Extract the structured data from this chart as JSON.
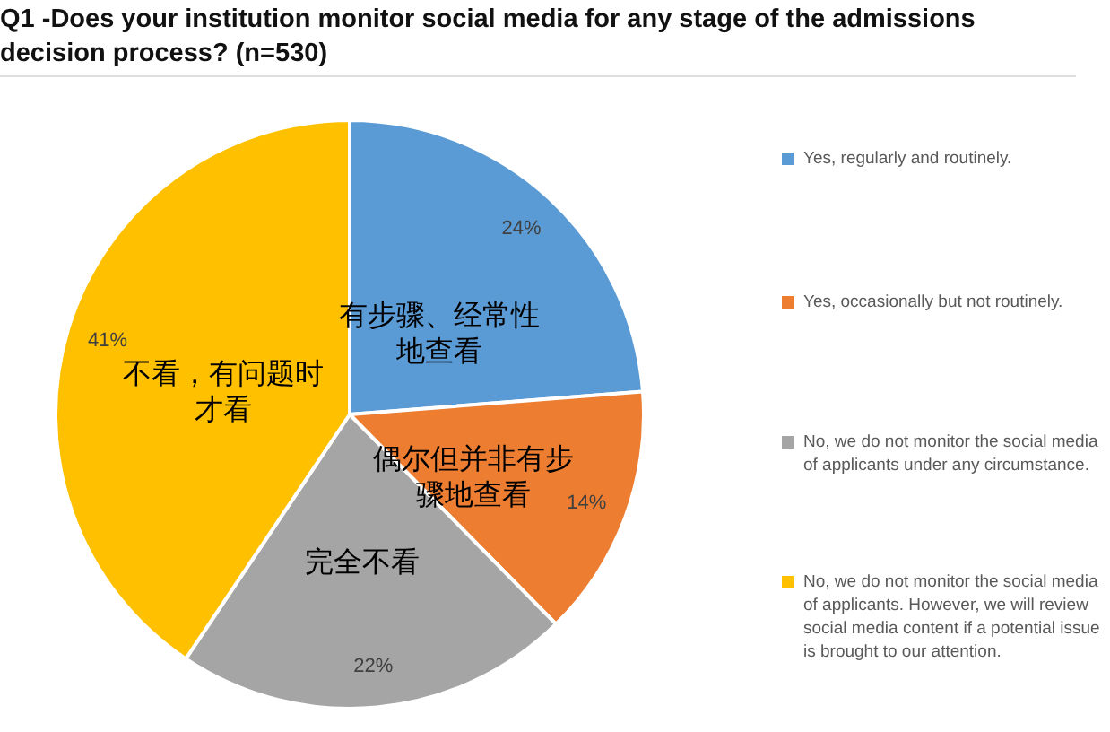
{
  "chart_data": {
    "type": "pie",
    "title": "Q1 -Does your institution monitor social media for any stage of the admissions decision process? (n=530)",
    "categories": [
      "Yes, regularly and routinely.",
      "Yes, occasionally but not routinely.",
      "No, we do not monitor the social media of applicants under any circumstance.",
      "No, we do not monitor the social media of applicants.  However, we will review social media content if a potential issue is brought to our attention."
    ],
    "values": [
      24,
      14,
      22,
      41
    ],
    "value_labels": [
      "24%",
      "14%",
      "22%",
      "41%"
    ],
    "colors": [
      "#5b9bd5",
      "#ed7d31",
      "#a5a5a5",
      "#ffc000"
    ],
    "annotations": [
      "有步骤、经常性地查看",
      "偶尔但并非有步骤地查看",
      "完全不看",
      "不看，有问题时才看"
    ],
    "legend": "right"
  }
}
